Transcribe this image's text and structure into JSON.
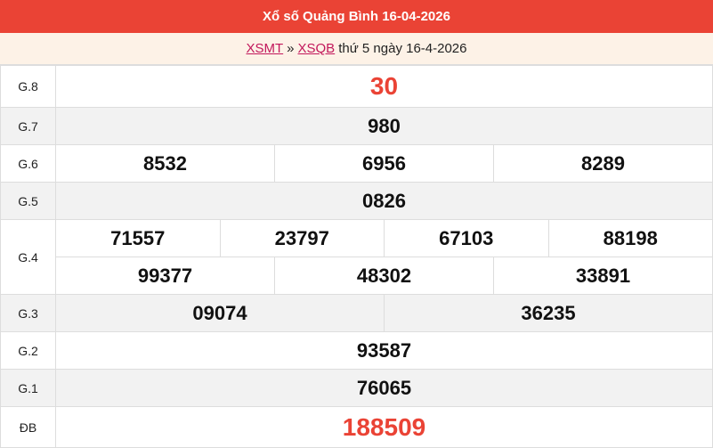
{
  "title": "Xổ số Quảng Bình 16-04-2026",
  "breadcrumb": {
    "link1": "XSMT",
    "sep": "»",
    "link2": "XSQB",
    "text": "thứ 5 ngày 16-4-2026"
  },
  "colors": {
    "header": "#ea4335",
    "special": "#ea4335",
    "link": "#c2185b"
  },
  "prizes": {
    "g8": {
      "label": "G.8",
      "values": [
        "30"
      ]
    },
    "g7": {
      "label": "G.7",
      "values": [
        "980"
      ]
    },
    "g6": {
      "label": "G.6",
      "values": [
        "8532",
        "6956",
        "8289"
      ]
    },
    "g5": {
      "label": "G.5",
      "values": [
        "0826"
      ]
    },
    "g4": {
      "label": "G.4",
      "values": [
        "71557",
        "23797",
        "67103",
        "88198",
        "99377",
        "48302",
        "33891"
      ]
    },
    "g3": {
      "label": "G.3",
      "values": [
        "09074",
        "36235"
      ]
    },
    "g2": {
      "label": "G.2",
      "values": [
        "93587"
      ]
    },
    "g1": {
      "label": "G.1",
      "values": [
        "76065"
      ]
    },
    "db": {
      "label": "ĐB",
      "values": [
        "188509"
      ]
    }
  }
}
